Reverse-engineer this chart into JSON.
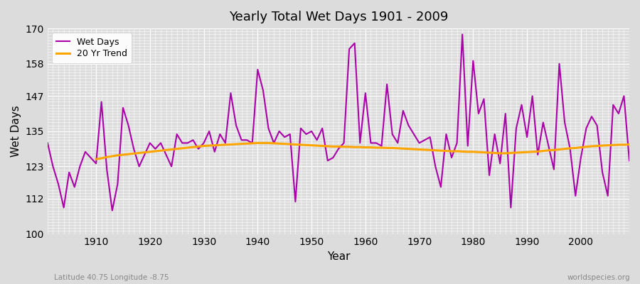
{
  "title": "Yearly Total Wet Days 1901 - 2009",
  "xlabel": "Year",
  "ylabel": "Wet Days",
  "subtitle": "Latitude 40.75 Longitude -8.75",
  "watermark": "worldspecies.org",
  "ylim": [
    100,
    170
  ],
  "yticks": [
    100,
    112,
    123,
    135,
    147,
    158,
    170
  ],
  "xlim": [
    1901,
    2009
  ],
  "xticks": [
    1910,
    1920,
    1930,
    1940,
    1950,
    1960,
    1970,
    1980,
    1990,
    2000
  ],
  "wet_days_color": "#aa00aa",
  "trend_color": "#FFA500",
  "background_color": "#dcdcdc",
  "years": [
    1901,
    1902,
    1903,
    1904,
    1905,
    1906,
    1907,
    1908,
    1909,
    1910,
    1911,
    1912,
    1913,
    1914,
    1915,
    1916,
    1917,
    1918,
    1919,
    1920,
    1921,
    1922,
    1923,
    1924,
    1925,
    1926,
    1927,
    1928,
    1929,
    1930,
    1931,
    1932,
    1933,
    1934,
    1935,
    1936,
    1937,
    1938,
    1939,
    1940,
    1941,
    1942,
    1943,
    1944,
    1945,
    1946,
    1947,
    1948,
    1949,
    1950,
    1951,
    1952,
    1953,
    1954,
    1955,
    1956,
    1957,
    1958,
    1959,
    1960,
    1961,
    1962,
    1963,
    1964,
    1965,
    1966,
    1967,
    1968,
    1969,
    1970,
    1971,
    1972,
    1973,
    1974,
    1975,
    1976,
    1977,
    1978,
    1979,
    1980,
    1981,
    1982,
    1983,
    1984,
    1985,
    1986,
    1987,
    1988,
    1989,
    1990,
    1991,
    1992,
    1993,
    1994,
    1995,
    1996,
    1997,
    1998,
    1999,
    2000,
    2001,
    2002,
    2003,
    2004,
    2005,
    2006,
    2007,
    2008,
    2009
  ],
  "wet_days": [
    131,
    123,
    117,
    109,
    121,
    116,
    123,
    128,
    126,
    124,
    145,
    122,
    108,
    117,
    143,
    137,
    129,
    123,
    127,
    131,
    129,
    131,
    127,
    123,
    134,
    131,
    131,
    132,
    129,
    131,
    135,
    128,
    134,
    131,
    148,
    137,
    132,
    132,
    131,
    156,
    149,
    136,
    131,
    135,
    133,
    134,
    111,
    136,
    134,
    135,
    132,
    136,
    125,
    126,
    129,
    131,
    163,
    165,
    131,
    148,
    131,
    131,
    130,
    151,
    134,
    131,
    142,
    137,
    134,
    131,
    132,
    133,
    123,
    116,
    134,
    126,
    131,
    168,
    130,
    159,
    141,
    146,
    120,
    134,
    124,
    141,
    109,
    136,
    144,
    133,
    147,
    127,
    138,
    130,
    122,
    158,
    138,
    129,
    113,
    126,
    136,
    140,
    137,
    121,
    113,
    144,
    141,
    147,
    125
  ],
  "trend_years": [
    1910,
    1911,
    1912,
    1913,
    1914,
    1915,
    1916,
    1917,
    1918,
    1919,
    1920,
    1921,
    1922,
    1923,
    1924,
    1925,
    1926,
    1927,
    1928,
    1929,
    1930,
    1931,
    1932,
    1933,
    1934,
    1935,
    1936,
    1937,
    1938,
    1939,
    1940,
    1941,
    1942,
    1943,
    1944,
    1945,
    1946,
    1947,
    1948,
    1949,
    1950,
    1951,
    1952,
    1953,
    1954,
    1955,
    1956,
    1957,
    1958,
    1959,
    1960,
    1961,
    1962,
    1963,
    1964,
    1965,
    1966,
    1967,
    1968,
    1969,
    1970,
    1971,
    1972,
    1973,
    1974,
    1975,
    1976,
    1977,
    1978,
    1979,
    1980,
    1981,
    1982,
    1983,
    1984,
    1985,
    1986,
    1987,
    1988,
    1989,
    1990,
    1991,
    1992,
    1993,
    1994,
    1995,
    1996,
    1997,
    1998,
    1999,
    2000,
    2001,
    2002,
    2003,
    2004,
    2005,
    2006,
    2007,
    2008,
    2009
  ],
  "trend_values": [
    125.5,
    125.8,
    126.2,
    126.5,
    126.8,
    127.0,
    127.2,
    127.4,
    127.6,
    127.8,
    128.0,
    128.2,
    128.4,
    128.6,
    128.8,
    129.0,
    129.2,
    129.4,
    129.6,
    129.8,
    130.0,
    130.1,
    130.2,
    130.3,
    130.4,
    130.5,
    130.6,
    130.7,
    130.8,
    130.9,
    131.0,
    131.0,
    131.0,
    130.9,
    130.8,
    130.7,
    130.6,
    130.5,
    130.4,
    130.3,
    130.2,
    130.1,
    130.0,
    129.9,
    129.8,
    129.8,
    129.7,
    129.7,
    129.6,
    129.6,
    129.5,
    129.5,
    129.4,
    129.4,
    129.3,
    129.3,
    129.2,
    129.1,
    129.0,
    128.9,
    128.8,
    128.7,
    128.6,
    128.5,
    128.4,
    128.3,
    128.2,
    128.2,
    128.1,
    128.0,
    128.0,
    127.9,
    127.8,
    127.7,
    127.6,
    127.5,
    127.5,
    127.6,
    127.7,
    127.8,
    127.9,
    128.0,
    128.1,
    128.3,
    128.5,
    128.6,
    128.8,
    129.0,
    129.2,
    129.3,
    129.5,
    129.7,
    129.9,
    130.0,
    130.1,
    130.2,
    130.3,
    130.4,
    130.4,
    130.5
  ]
}
